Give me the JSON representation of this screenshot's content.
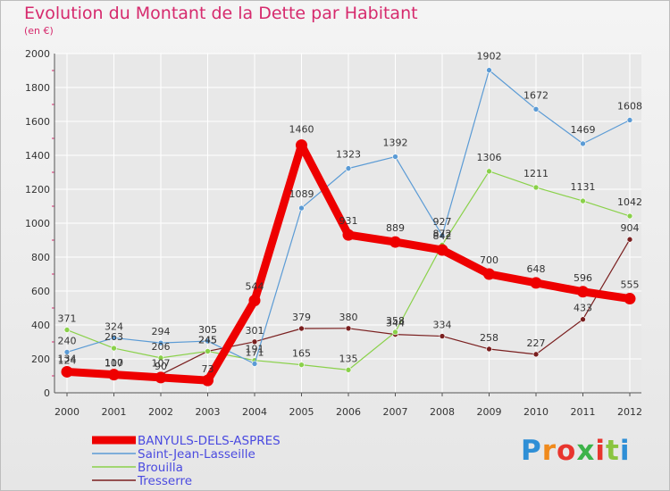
{
  "title": "Evolution du Montant de la Dette par Habitant",
  "subtitle": "(en €)",
  "brand": "Proxiti",
  "colors": {
    "title": "#d62a6d",
    "axis": "#333333",
    "grid": "#ffffff",
    "legend_text": "#4a4ae0"
  },
  "chart_data": {
    "type": "line",
    "x": [
      "2000",
      "2001",
      "2002",
      "2003",
      "2004",
      "2005",
      "2006",
      "2007",
      "2008",
      "2009",
      "2010",
      "2011",
      "2012"
    ],
    "ylim": [
      0,
      2000
    ],
    "yticks": [
      0,
      200,
      400,
      600,
      800,
      1000,
      1200,
      1400,
      1600,
      1800,
      2000
    ],
    "grid": true,
    "legend": "bottom-left",
    "series": [
      {
        "name": "BANYULS-DELS-ASPRES",
        "color": "#ee0000",
        "values": [
          124,
          107,
          90,
          73,
          544,
          1460,
          931,
          889,
          842,
          700,
          648,
          596,
          555
        ]
      },
      {
        "name": "Saint-Jean-Lasseille",
        "color": "#5b9bd5",
        "values": [
          240,
          324,
          294,
          305,
          171,
          1089,
          1323,
          1392,
          927,
          1902,
          1672,
          1469,
          1608
        ]
      },
      {
        "name": "Brouilla",
        "color": "#8ad14a",
        "values": [
          371,
          263,
          206,
          245,
          191,
          165,
          135,
          358,
          872,
          1306,
          1211,
          1131,
          1042
        ]
      },
      {
        "name": "Tresserre",
        "color": "#7a1f1f",
        "values": [
          134,
          110,
          107,
          245,
          301,
          379,
          380,
          344,
          334,
          258,
          227,
          433,
          904
        ]
      }
    ]
  }
}
